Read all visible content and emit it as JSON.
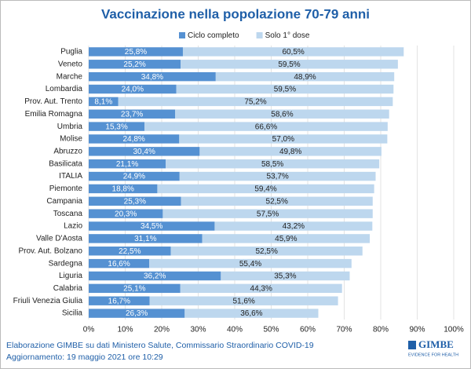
{
  "chart_data": {
    "type": "bar",
    "orientation": "horizontal",
    "stacked": true,
    "title": "Vaccinazione nella popolazione 70-79 anni",
    "categories": [
      "Puglia",
      "Veneto",
      "Marche",
      "Lombardia",
      "Prov. Aut. Trento",
      "Emilia Romagna",
      "Umbria",
      "Molise",
      "Abruzzo",
      "Basilicata",
      "ITALIA",
      "Piemonte",
      "Campania",
      "Toscana",
      "Lazio",
      "Valle D'Aosta",
      "Prov. Aut. Bolzano",
      "Sardegna",
      "Liguria",
      "Calabria",
      "Friuli Venezia Giulia",
      "Sicilia"
    ],
    "series": [
      {
        "name": "Ciclo completo",
        "color": "#5591d2",
        "values": [
          25.8,
          25.2,
          34.8,
          24.0,
          8.1,
          23.7,
          15.3,
          24.8,
          30.4,
          21.1,
          24.9,
          18.8,
          25.3,
          20.3,
          34.5,
          31.1,
          22.5,
          16.6,
          36.2,
          25.1,
          16.7,
          26.3
        ],
        "value_labels": [
          "25,8%",
          "25,2%",
          "34,8%",
          "24,0%",
          "8,1%",
          "23,7%",
          "15,3%",
          "24,8%",
          "30,4%",
          "21,1%",
          "24,9%",
          "18,8%",
          "25,3%",
          "20,3%",
          "34,5%",
          "31,1%",
          "22,5%",
          "16,6%",
          "36,2%",
          "25,1%",
          "16,7%",
          "26,3%"
        ]
      },
      {
        "name": "Solo 1° dose",
        "color": "#bdd7ee",
        "values": [
          60.5,
          59.5,
          48.9,
          59.5,
          75.2,
          58.6,
          66.6,
          57.0,
          49.8,
          58.5,
          53.7,
          59.4,
          52.5,
          57.5,
          43.2,
          45.9,
          52.5,
          55.4,
          35.3,
          44.3,
          51.6,
          36.6
        ],
        "value_labels": [
          "60,5%",
          "59,5%",
          "48,9%",
          "59,5%",
          "75,2%",
          "58,6%",
          "66,6%",
          "57,0%",
          "49,8%",
          "58,5%",
          "53,7%",
          "59,4%",
          "52,5%",
          "57,5%",
          "43,2%",
          "45,9%",
          "52,5%",
          "55,4%",
          "35,3%",
          "44,3%",
          "51,6%",
          "36,6%"
        ]
      }
    ],
    "xlim": [
      0,
      100
    ],
    "xticks": [
      {
        "value": 0,
        "label": "0%"
      },
      {
        "value": 10,
        "label": "10%"
      },
      {
        "value": 20,
        "label": "20%"
      },
      {
        "value": 30,
        "label": "30%"
      },
      {
        "value": 40,
        "label": "40%"
      },
      {
        "value": 50,
        "label": "50%"
      },
      {
        "value": 60,
        "label": "60%"
      },
      {
        "value": 70,
        "label": "70%"
      },
      {
        "value": 80,
        "label": "80%"
      },
      {
        "value": 90,
        "label": "90%"
      },
      {
        "value": 100,
        "label": "100%"
      }
    ],
    "grid": true,
    "legend": "top"
  },
  "footer": {
    "source": "Elaborazione GIMBE su dati Ministero Salute, Commissario Straordinario COVID-19",
    "updated": "Aggiornamento: 19 maggio 2021 ore 10:29",
    "logo": "GIMBE",
    "tagline": "EVIDENCE FOR HEALTH"
  }
}
